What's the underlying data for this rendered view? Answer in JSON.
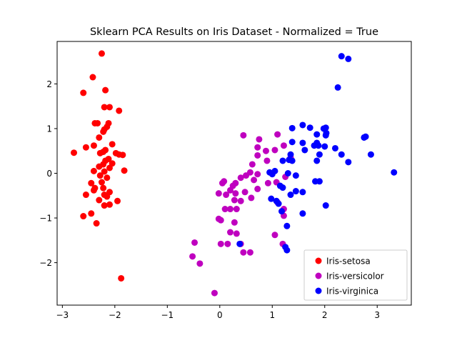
{
  "chart_data": {
    "type": "scatter",
    "title": "Sklearn PCA Results on Iris Dataset - Normalized = True",
    "xlabel": "",
    "ylabel": "",
    "xlim": [
      -3.1,
      3.65
    ],
    "ylim": [
      -2.95,
      2.95
    ],
    "xticks": [
      -3,
      -2,
      -1,
      0,
      1,
      2,
      3
    ],
    "yticks": [
      -2,
      -1,
      0,
      1,
      2
    ],
    "grid": false,
    "legend_position": "lower-right",
    "series": [
      {
        "name": "Iris-setosa",
        "color": "#ff0000",
        "points": [
          [
            -2.25,
            2.68
          ],
          [
            -2.42,
            2.15
          ],
          [
            -2.6,
            1.8
          ],
          [
            -2.18,
            1.86
          ],
          [
            -2.1,
            1.48
          ],
          [
            -2.2,
            1.48
          ],
          [
            -1.92,
            1.4
          ],
          [
            -2.33,
            1.12
          ],
          [
            -2.38,
            1.12
          ],
          [
            -2.12,
            1.12
          ],
          [
            -2.15,
            1.04
          ],
          [
            -2.2,
            0.98
          ],
          [
            -2.22,
            0.93
          ],
          [
            -2.3,
            0.8
          ],
          [
            -2.05,
            0.65
          ],
          [
            -2.4,
            0.62
          ],
          [
            -2.55,
            0.58
          ],
          [
            -2.18,
            0.52
          ],
          [
            -2.22,
            0.48
          ],
          [
            -2.28,
            0.45
          ],
          [
            -1.98,
            0.45
          ],
          [
            -1.92,
            0.42
          ],
          [
            -1.85,
            0.41
          ],
          [
            -2.78,
            0.46
          ],
          [
            -2.12,
            0.32
          ],
          [
            -2.18,
            0.28
          ],
          [
            -2.05,
            0.22
          ],
          [
            -2.22,
            0.2
          ],
          [
            -2.3,
            0.15
          ],
          [
            -2.1,
            0.12
          ],
          [
            -2.4,
            0.05
          ],
          [
            -2.2,
            0.04
          ],
          [
            -1.82,
            0.06
          ],
          [
            -2.28,
            -0.05
          ],
          [
            -2.15,
            -0.1
          ],
          [
            -2.25,
            -0.2
          ],
          [
            -2.45,
            -0.22
          ],
          [
            -2.22,
            -0.33
          ],
          [
            -2.38,
            -0.33
          ],
          [
            -2.1,
            -0.42
          ],
          [
            -2.4,
            -0.38
          ],
          [
            -2.55,
            -0.48
          ],
          [
            -2.2,
            -0.48
          ],
          [
            -2.15,
            -0.52
          ],
          [
            -2.3,
            -0.6
          ],
          [
            -1.95,
            -0.62
          ],
          [
            -2.1,
            -0.7
          ],
          [
            -2.2,
            -0.72
          ],
          [
            -2.6,
            -0.96
          ],
          [
            -2.45,
            -0.9
          ],
          [
            -2.35,
            -1.12
          ],
          [
            -1.88,
            -2.35
          ]
        ]
      },
      {
        "name": "Iris-versicolor",
        "color": "#bf00bf",
        "points": [
          [
            0.45,
            0.85
          ],
          [
            1.1,
            0.87
          ],
          [
            0.75,
            0.76
          ],
          [
            1.22,
            0.62
          ],
          [
            0.72,
            0.58
          ],
          [
            0.88,
            0.5
          ],
          [
            1.05,
            0.52
          ],
          [
            0.72,
            0.4
          ],
          [
            1.35,
            0.35
          ],
          [
            0.9,
            0.28
          ],
          [
            0.62,
            0.2
          ],
          [
            0.58,
            0.02
          ],
          [
            0.72,
            -0.02
          ],
          [
            0.5,
            -0.05
          ],
          [
            0.4,
            -0.1
          ],
          [
            0.65,
            -0.15
          ],
          [
            0.08,
            -0.18
          ],
          [
            0.05,
            -0.22
          ],
          [
            0.25,
            -0.28
          ],
          [
            0.3,
            -0.22
          ],
          [
            1.25,
            -0.08
          ],
          [
            1.08,
            -0.2
          ],
          [
            0.92,
            -0.22
          ],
          [
            0.72,
            -0.35
          ],
          [
            0.48,
            -0.42
          ],
          [
            0.2,
            -0.38
          ],
          [
            -0.02,
            -0.45
          ],
          [
            0.3,
            -0.45
          ],
          [
            0.12,
            -0.48
          ],
          [
            0.6,
            -0.55
          ],
          [
            0.28,
            -0.6
          ],
          [
            0.4,
            -0.62
          ],
          [
            1.1,
            -0.65
          ],
          [
            1.22,
            -0.8
          ],
          [
            0.2,
            -0.8
          ],
          [
            0.1,
            -0.8
          ],
          [
            0.32,
            -0.8
          ],
          [
            -0.02,
            -1.02
          ],
          [
            0.02,
            -1.05
          ],
          [
            0.28,
            -1.1
          ],
          [
            0.2,
            -1.32
          ],
          [
            0.32,
            -1.35
          ],
          [
            0.4,
            -1.58
          ],
          [
            0.15,
            -1.58
          ],
          [
            0.02,
            -1.58
          ],
          [
            1.05,
            -1.38
          ],
          [
            1.22,
            -0.95
          ],
          [
            1.2,
            -1.58
          ],
          [
            0.45,
            -1.77
          ],
          [
            0.58,
            -1.77
          ],
          [
            -0.48,
            -1.55
          ],
          [
            -0.52,
            -1.86
          ],
          [
            -0.38,
            -2.02
          ],
          [
            -0.1,
            -2.68
          ]
        ]
      },
      {
        "name": "Iris-virginica",
        "color": "#0000ff",
        "points": [
          [
            2.32,
            2.62
          ],
          [
            2.45,
            2.56
          ],
          [
            2.25,
            1.92
          ],
          [
            1.58,
            1.08
          ],
          [
            1.38,
            1.01
          ],
          [
            1.72,
            1.02
          ],
          [
            1.98,
            1.0
          ],
          [
            2.02,
            1.02
          ],
          [
            2.03,
            0.9
          ],
          [
            2.02,
            0.85
          ],
          [
            1.85,
            0.87
          ],
          [
            2.78,
            0.82
          ],
          [
            2.75,
            0.8
          ],
          [
            1.38,
            0.7
          ],
          [
            1.58,
            0.68
          ],
          [
            1.85,
            0.68
          ],
          [
            1.88,
            0.62
          ],
          [
            1.8,
            0.62
          ],
          [
            2.0,
            0.6
          ],
          [
            2.2,
            0.56
          ],
          [
            1.62,
            0.52
          ],
          [
            1.35,
            0.42
          ],
          [
            1.9,
            0.42
          ],
          [
            2.32,
            0.42
          ],
          [
            2.88,
            0.42
          ],
          [
            1.32,
            0.3
          ],
          [
            1.2,
            0.28
          ],
          [
            1.38,
            0.28
          ],
          [
            1.85,
            0.28
          ],
          [
            2.45,
            0.25
          ],
          [
            1.05,
            0.05
          ],
          [
            0.95,
            0.02
          ],
          [
            1.0,
            -0.02
          ],
          [
            1.3,
            0.0
          ],
          [
            1.45,
            -0.05
          ],
          [
            3.32,
            0.02
          ],
          [
            1.82,
            -0.18
          ],
          [
            1.9,
            -0.18
          ],
          [
            1.15,
            -0.28
          ],
          [
            1.2,
            -0.32
          ],
          [
            1.45,
            -0.4
          ],
          [
            1.35,
            -0.48
          ],
          [
            1.58,
            -0.42
          ],
          [
            0.98,
            -0.57
          ],
          [
            1.12,
            -0.68
          ],
          [
            1.08,
            -0.62
          ],
          [
            1.18,
            -0.85
          ],
          [
            1.58,
            -0.9
          ],
          [
            2.02,
            -0.72
          ],
          [
            1.28,
            -1.18
          ],
          [
            0.38,
            -1.58
          ],
          [
            1.25,
            -1.65
          ],
          [
            1.28,
            -1.72
          ]
        ]
      }
    ]
  }
}
